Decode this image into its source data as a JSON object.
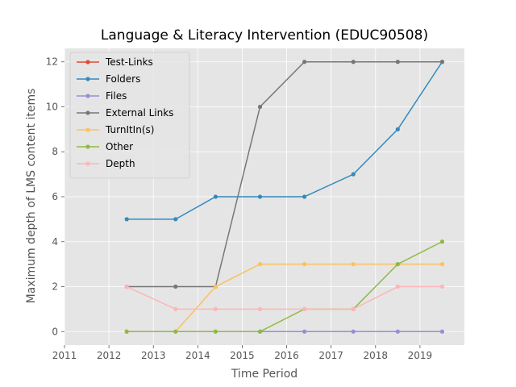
{
  "chart_data": {
    "type": "line",
    "title": "Language & Literacy Intervention (EDUC90508)",
    "xlabel": "Time Period",
    "ylabel": "Maximum depth of LMS content items",
    "xlim": [
      2011,
      2020.0
    ],
    "ylim": [
      -0.6,
      12.6
    ],
    "xticks": [
      2011,
      2012,
      2013,
      2014,
      2015,
      2016,
      2017,
      2018,
      2019
    ],
    "yticks": [
      0,
      2,
      4,
      6,
      8,
      10,
      12
    ],
    "grid": true,
    "legend_position": "upper left",
    "x": [
      2012.4,
      2013.5,
      2014.4,
      2015.4,
      2016.4,
      2017.5,
      2018.5,
      2019.5
    ],
    "series": [
      {
        "name": "Test-Links",
        "color": "#E24A33",
        "values": [
          null,
          null,
          null,
          null,
          null,
          null,
          null,
          null
        ]
      },
      {
        "name": "Folders",
        "color": "#348ABD",
        "values": [
          5,
          5,
          6,
          6,
          6,
          7,
          9,
          12
        ]
      },
      {
        "name": "Files",
        "color": "#988ED5",
        "values": [
          null,
          null,
          null,
          0,
          0,
          0,
          0,
          0
        ]
      },
      {
        "name": "External Links",
        "color": "#777777",
        "values": [
          2,
          2,
          2,
          10,
          12,
          12,
          12,
          12
        ]
      },
      {
        "name": "TurnItIn(s)",
        "color": "#FBC15E",
        "values": [
          0,
          0,
          2,
          3,
          3,
          3,
          3,
          3
        ]
      },
      {
        "name": "Other",
        "color": "#8EBA42",
        "values": [
          0,
          0,
          0,
          0,
          1,
          1,
          3,
          4
        ]
      },
      {
        "name": "Depth",
        "color": "#FFB5B8",
        "values": [
          2,
          1,
          1,
          1,
          1,
          1,
          2,
          2
        ]
      }
    ]
  }
}
